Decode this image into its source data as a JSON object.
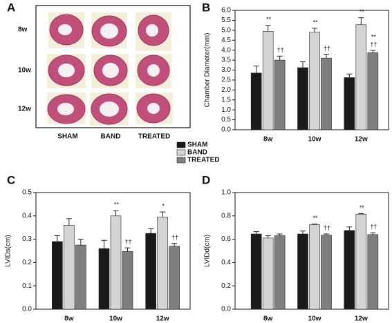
{
  "panel_a": {
    "letter": "A",
    "rows": [
      "8w",
      "10w",
      "12w"
    ],
    "columns": [
      "SHAM",
      "BAND",
      "TREATED"
    ]
  },
  "chart_data": [
    {
      "type": "bar",
      "letter": "B",
      "ylabel": "Chamber Diameter(mm)",
      "categories": [
        "8w",
        "10w",
        "12w"
      ],
      "ylim": [
        0,
        6
      ],
      "yticks": [
        {
          "value": 0,
          "label": "0.0"
        },
        0.5,
        {
          "value": 1,
          "label": "1.0"
        },
        1.5,
        {
          "value": 2,
          "label": "2.0"
        },
        2.5,
        {
          "value": 3,
          "label": "3.0"
        },
        3.5,
        {
          "value": 4,
          "label": "4.0"
        },
        4.5,
        {
          "value": 5,
          "label": "5.0"
        },
        5.5,
        {
          "value": 6,
          "label": "6.0"
        }
      ],
      "series": [
        {
          "name": "SHAM",
          "color": "#1a1a1a",
          "values": [
            2.85,
            3.12,
            2.62
          ],
          "errors": [
            0.35,
            0.3,
            0.18
          ],
          "significance": [
            null,
            null,
            null
          ]
        },
        {
          "name": "BAND",
          "color": "#d4d4d4",
          "values": [
            4.95,
            4.9,
            5.28
          ],
          "errors": [
            0.3,
            0.2,
            0.35
          ],
          "significance": [
            [
              "**"
            ],
            [
              "**"
            ],
            [
              "**"
            ]
          ]
        },
        {
          "name": "TREATED",
          "color": "#7f7f7f",
          "values": [
            3.5,
            3.6,
            3.87
          ],
          "errors": [
            0.2,
            0.2,
            0.12
          ],
          "significance": [
            [
              "††"
            ],
            [
              "††"
            ],
            [
              "**",
              "††"
            ]
          ]
        }
      ]
    },
    {
      "type": "bar",
      "letter": "C",
      "ylabel": "LVIDs(cm)",
      "categories": [
        "8w",
        "10w",
        "12w"
      ],
      "ylim": [
        0,
        0.5
      ],
      "yticks": [
        {
          "value": 0,
          "label": "0.0"
        },
        0.1,
        0.2,
        0.3,
        0.4,
        0.5
      ],
      "series": [
        {
          "color": "#1a1a1a",
          "values": [
            0.29,
            0.26,
            0.325
          ],
          "errors": [
            0.025,
            0.035,
            0.02
          ],
          "significance": [
            null,
            null,
            null
          ]
        },
        {
          "color": "#d4d4d4",
          "values": [
            0.36,
            0.4,
            0.395
          ],
          "errors": [
            0.028,
            0.022,
            0.022
          ],
          "significance": [
            null,
            [
              "**"
            ],
            [
              "*"
            ]
          ]
        },
        {
          "color": "#7f7f7f",
          "values": [
            0.275,
            0.248,
            0.27
          ],
          "errors": [
            0.025,
            0.015,
            0.012
          ],
          "significance": [
            null,
            [
              "††"
            ],
            [
              "††"
            ]
          ]
        }
      ]
    },
    {
      "type": "bar",
      "letter": "D",
      "ylabel": "LVIDd(cm)",
      "categories": [
        "8w",
        "10w",
        "12w"
      ],
      "ylim": [
        0,
        1
      ],
      "yticks": [
        {
          "value": 0,
          "label": "0.0"
        },
        0.2,
        0.4,
        0.6,
        0.8,
        {
          "value": 1,
          "label": "1.0"
        }
      ],
      "series": [
        {
          "color": "#1a1a1a",
          "values": [
            0.645,
            0.645,
            0.675
          ],
          "errors": [
            0.02,
            0.025,
            0.03
          ],
          "significance": [
            null,
            null,
            null
          ]
        },
        {
          "color": "#d4d4d4",
          "values": [
            0.61,
            0.725,
            0.815
          ],
          "errors": [
            0.02,
            0.005,
            0.005
          ],
          "significance": [
            null,
            [
              "**"
            ],
            [
              "**"
            ]
          ]
        },
        {
          "color": "#7f7f7f",
          "values": [
            0.63,
            0.635,
            0.64
          ],
          "errors": [
            0.015,
            0.01,
            0.015
          ],
          "significance": [
            null,
            [
              "††"
            ],
            [
              "††"
            ]
          ]
        }
      ]
    }
  ]
}
